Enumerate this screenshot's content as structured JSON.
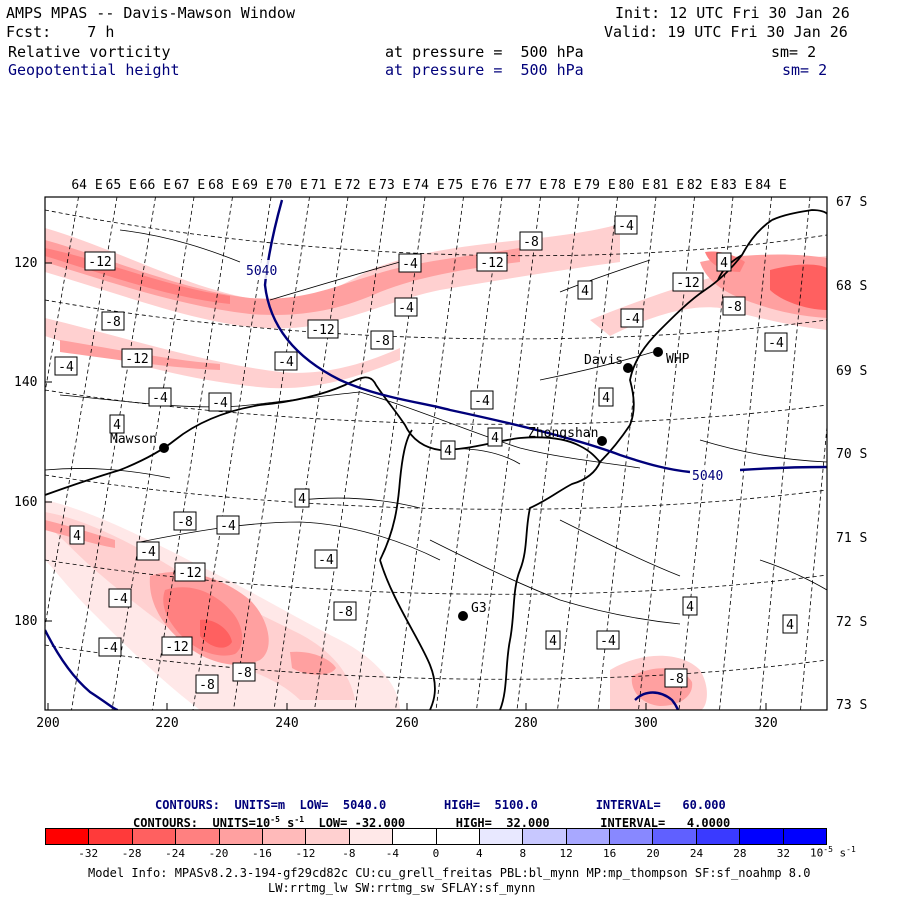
{
  "header": {
    "line1_left": "AMPS MPAS -- Davis-Mawson Window",
    "line2_left": "Fcst:    7 h",
    "line1_right": "Init: 12 UTC Fri 30 Jan 26",
    "line2_right": "Valid: 19 UTC Fri 30 Jan 26",
    "field1": {
      "name": "Relative vorticity",
      "level": "at pressure =  500 hPa",
      "smooth": "sm= 2"
    },
    "field2": {
      "name": "Geopotential height",
      "level": "at pressure =  500 hPa",
      "smooth": "sm= 2"
    }
  },
  "map": {
    "top_longitudes": [
      "64 E",
      "65 E",
      "66 E",
      "67 E",
      "68 E",
      "69 E",
      "70 E",
      "71 E",
      "72 E",
      "73 E",
      "74 E",
      "75 E",
      "76 E",
      "77 E",
      "78 E",
      "79 E",
      "80 E",
      "81 E",
      "82 E",
      "83 E",
      "84 E"
    ],
    "right_latitudes": [
      "67 S",
      "68 S",
      "69 S",
      "70 S",
      "71 S",
      "72 S",
      "73 S"
    ],
    "left_ticks": [
      "120",
      "140",
      "160",
      "180"
    ],
    "bottom_ticks": [
      "200",
      "220",
      "240",
      "260",
      "280",
      "300",
      "320"
    ],
    "stations": [
      {
        "name": "Mawson"
      },
      {
        "name": "Davis"
      },
      {
        "name": "WHP"
      },
      {
        "name": "Zhongshan"
      },
      {
        "name": "G3"
      }
    ],
    "height_contour_labels": [
      "5040",
      "5040"
    ],
    "vorticity_labels": [
      "-12",
      "-8",
      "-12",
      "-4",
      "-4",
      "-4",
      "4",
      "-4",
      "-8",
      "-4",
      "-12",
      "-4",
      "-12",
      "-8",
      "-4",
      "4",
      "-4",
      "-12",
      "-8",
      "-4",
      "4",
      "-4",
      "4",
      "4",
      "4",
      "-8",
      "-4",
      "4",
      "-4",
      "-4",
      "-12",
      "-4",
      "-4",
      "-12",
      "-8",
      "-8",
      "-8",
      "4",
      "4",
      "-4",
      "4",
      "-8",
      "4"
    ]
  },
  "legend": {
    "line1": "CONTOURS:  UNITS=m  LOW=  5040.0        HIGH=  5100.0        INTERVAL=   60.000",
    "line2_a": "CONTOURS:  UNITS=10",
    "line2_exp": "-5",
    "line2_b": " s",
    "line2_exp2": "-1",
    "line2_c": "  LOW= -32.000       HIGH=  32.000       INTERVAL=   4.0000",
    "colorbar_labels": [
      "-32",
      "-28",
      "-24",
      "-20",
      "-16",
      "-12",
      "-8",
      "-4",
      "0",
      "4",
      "8",
      "12",
      "16",
      "20",
      "24",
      "28",
      "32"
    ],
    "colorbar_units": "10",
    "colorbar_units_exp": "-5",
    "colorbar_units_tail": " s",
    "colorbar_units_exp2": "-1",
    "colors": [
      "#ff0000",
      "#ff3a3a",
      "#ff6060",
      "#ff8080",
      "#ffa0a0",
      "#ffbaba",
      "#ffd0d0",
      "#ffe8e8",
      "#ffffff",
      "#ffffff",
      "#e8e8ff",
      "#c8c8ff",
      "#a8a8ff",
      "#8888ff",
      "#6060ff",
      "#3a3aff",
      "#0000ff"
    ]
  },
  "footer": {
    "line1": "Model Info: MPASv8.2.3-194-gf29cd82c CU:cu_grell_freitas PBL:bl_mynn MP:mp_thompson SF:sf_noahmp 8.0",
    "line2": "LW:rrtmg_lw SW:rrtmg_sw SFLAY:sf_mynn"
  }
}
